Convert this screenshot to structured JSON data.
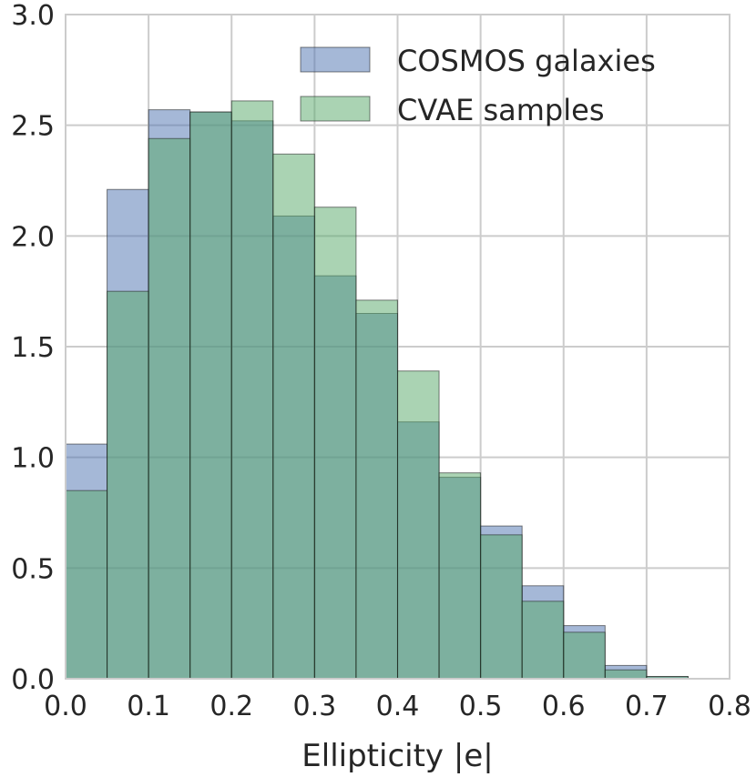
{
  "chart_data": {
    "type": "bar",
    "bin_edges": [
      0.0,
      0.05,
      0.1,
      0.15,
      0.2,
      0.25,
      0.3,
      0.35,
      0.4,
      0.45,
      0.5,
      0.55,
      0.6,
      0.65,
      0.7,
      0.75
    ],
    "series": [
      {
        "name": "COSMOS galaxies",
        "color": "#4C72B0",
        "values": [
          1.06,
          2.21,
          2.57,
          2.56,
          2.52,
          2.09,
          1.82,
          1.65,
          1.16,
          0.91,
          0.69,
          0.42,
          0.24,
          0.06,
          0.01
        ]
      },
      {
        "name": "CVAE samples",
        "color": "#55A868",
        "values": [
          0.85,
          1.75,
          2.44,
          2.56,
          2.61,
          2.37,
          2.13,
          1.71,
          1.39,
          0.93,
          0.65,
          0.35,
          0.21,
          0.04,
          0.01
        ]
      }
    ],
    "xlabel": "Ellipticity |e|",
    "ylabel": "",
    "xlim": [
      0.0,
      0.8
    ],
    "ylim": [
      0.0,
      3.0
    ],
    "xticks": [
      "0.0",
      "0.1",
      "0.2",
      "0.3",
      "0.4",
      "0.5",
      "0.6",
      "0.7",
      "0.8"
    ],
    "yticks": [
      "0.0",
      "0.5",
      "1.0",
      "1.5",
      "2.0",
      "2.5",
      "3.0"
    ],
    "grid": true,
    "legend_position": "top-right",
    "bar_alpha": 0.5
  }
}
